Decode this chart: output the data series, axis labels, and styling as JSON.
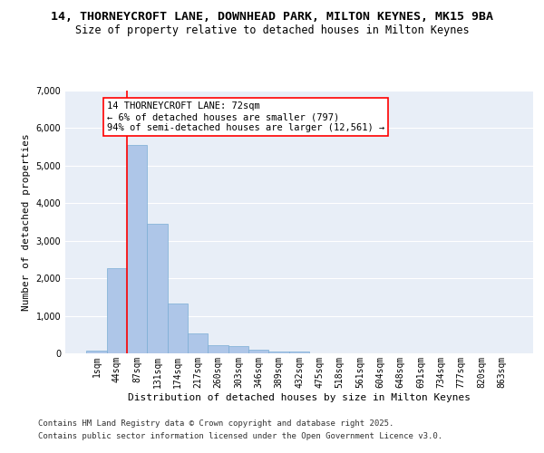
{
  "title1": "14, THORNEYCROFT LANE, DOWNHEAD PARK, MILTON KEYNES, MK15 9BA",
  "title2": "Size of property relative to detached houses in Milton Keynes",
  "xlabel": "Distribution of detached houses by size in Milton Keynes",
  "ylabel": "Number of detached properties",
  "categories": [
    "1sqm",
    "44sqm",
    "87sqm",
    "131sqm",
    "174sqm",
    "217sqm",
    "260sqm",
    "303sqm",
    "346sqm",
    "389sqm",
    "432sqm",
    "475sqm",
    "518sqm",
    "561sqm",
    "604sqm",
    "648sqm",
    "691sqm",
    "734sqm",
    "777sqm",
    "820sqm",
    "863sqm"
  ],
  "values": [
    65,
    2280,
    5560,
    3450,
    1320,
    520,
    210,
    200,
    105,
    60,
    40,
    0,
    0,
    0,
    0,
    0,
    0,
    0,
    0,
    0,
    0
  ],
  "bar_color": "#aec6e8",
  "bar_edge_color": "#7aadd4",
  "vline_color": "red",
  "vline_x_index": 1.5,
  "annotation_text": "14 THORNEYCROFT LANE: 72sqm\n← 6% of detached houses are smaller (797)\n94% of semi-detached houses are larger (12,561) →",
  "annotation_box_color": "white",
  "annotation_box_edge_color": "red",
  "ylim": [
    0,
    7000
  ],
  "yticks": [
    0,
    1000,
    2000,
    3000,
    4000,
    5000,
    6000,
    7000
  ],
  "bg_color": "#e8eef7",
  "grid_color": "white",
  "footer1": "Contains HM Land Registry data © Crown copyright and database right 2025.",
  "footer2": "Contains public sector information licensed under the Open Government Licence v3.0.",
  "title1_fontsize": 9.5,
  "title2_fontsize": 8.5,
  "xlabel_fontsize": 8,
  "ylabel_fontsize": 8,
  "tick_fontsize": 7,
  "annotation_fontsize": 7.5,
  "footer_fontsize": 6.5
}
